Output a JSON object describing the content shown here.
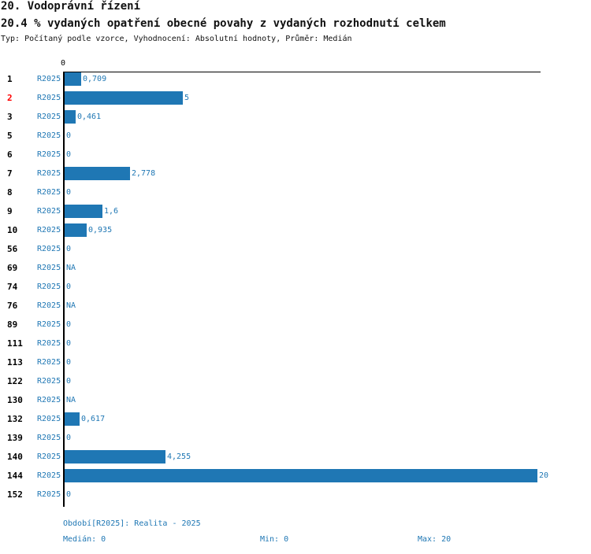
{
  "chart_data": {
    "type": "bar",
    "title": "20. Vodoprávní řízení",
    "subtitle": "20.4 % vydaných opatření obecné povahy z vydaných rozhodnutí celkem",
    "description": "Typ: Počítaný podle vzorce, Vyhodnocení: Absolutní hodnoty, Průměr: Medián",
    "axis_zero_label": "0",
    "xlim": [
      0,
      20
    ],
    "highlight_color": "#ff0000",
    "bar_color": "#1f77b4",
    "categories": [
      "1",
      "2",
      "3",
      "5",
      "6",
      "7",
      "8",
      "9",
      "10",
      "56",
      "69",
      "74",
      "76",
      "89",
      "111",
      "113",
      "122",
      "130",
      "132",
      "139",
      "140",
      "144",
      "152"
    ],
    "highlighted": [
      "2"
    ],
    "period": "R2025",
    "values": [
      0.709,
      5,
      0.461,
      0,
      0,
      2.778,
      0,
      1.6,
      0.935,
      0,
      null,
      0,
      null,
      0,
      0,
      0,
      0,
      null,
      0.617,
      0,
      4.255,
      20,
      0
    ],
    "labels": [
      "0,709",
      "5",
      "0,461",
      "0",
      "0",
      "2,778",
      "0",
      "1,6",
      "0,935",
      "0",
      "NA",
      "0",
      "NA",
      "0",
      "0",
      "0",
      "0",
      "NA",
      "0,617",
      "0",
      "4,255",
      "20",
      "0"
    ]
  },
  "footer": {
    "period": "Období[R2025]: Realita - 2025",
    "median": "Medián: 0",
    "min": "Min: 0",
    "max": "Max: 20"
  }
}
